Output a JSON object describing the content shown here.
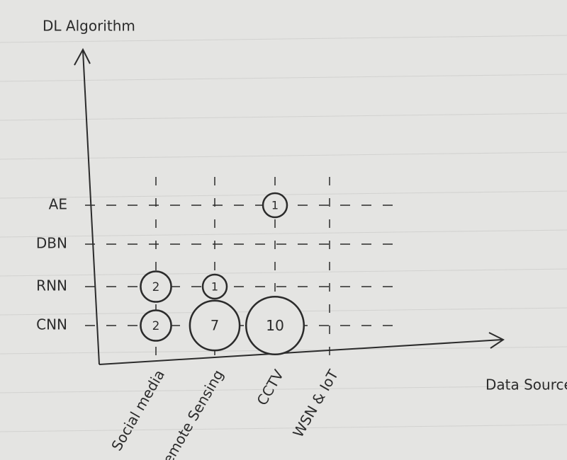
{
  "chart_data": {
    "type": "bubble",
    "x_label": "Data Source",
    "y_label": "DL Algorithm",
    "x_categories": [
      "Social media",
      "Remote Sensing",
      "CCTV",
      "WSN & IoT"
    ],
    "y_categories": [
      "AE",
      "DBN",
      "RNN",
      "CNN"
    ],
    "points": [
      {
        "x": "Social media",
        "y": "RNN",
        "value": 2
      },
      {
        "x": "Social media",
        "y": "CNN",
        "value": 2
      },
      {
        "x": "Remote Sensing",
        "y": "RNN",
        "value": 1
      },
      {
        "x": "Remote Sensing",
        "y": "CNN",
        "value": 7
      },
      {
        "x": "CCTV",
        "y": "AE",
        "value": 1
      },
      {
        "x": "CCTV",
        "y": "CNN",
        "value": 10
      }
    ],
    "color": "#2b2b2b",
    "grid": true
  }
}
